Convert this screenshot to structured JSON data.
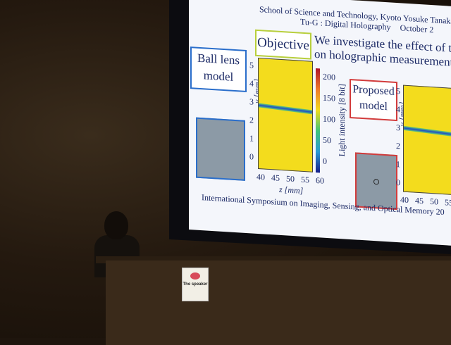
{
  "slide": {
    "header_line1": "School of Science and Technology, Kyoto",
    "header_author": "Yosuke Tanaka",
    "header_line2": "Tu-G : Digital Holography",
    "header_date": "October 2",
    "objective_label": "Objective",
    "statement_line1": "We investigate the effect of trans",
    "statement_line2": "on holographic measurement, in",
    "ball_lens_label_1": "Ball lens",
    "ball_lens_label_2": "model",
    "proposed_label_1": "Proposed",
    "proposed_label_2": "model",
    "y_axis_label": "y [mm]",
    "z_axis_label": "z [mm]",
    "colorbar_label": "Light intensity [8 bit]",
    "y_ticks": [
      "5",
      "4",
      "3",
      "2",
      "1",
      "0"
    ],
    "z_ticks": [
      "40",
      "45",
      "50",
      "55",
      "60"
    ],
    "z_ticks_partial": [
      "40",
      "45",
      "50",
      "55"
    ],
    "colorbar_ticks": [
      "200",
      "150",
      "100",
      "50",
      "0"
    ],
    "footer": "International Symposium on Imaging, Sensing, and Optical Memory 20"
  },
  "podium_sign": "The speaker"
}
